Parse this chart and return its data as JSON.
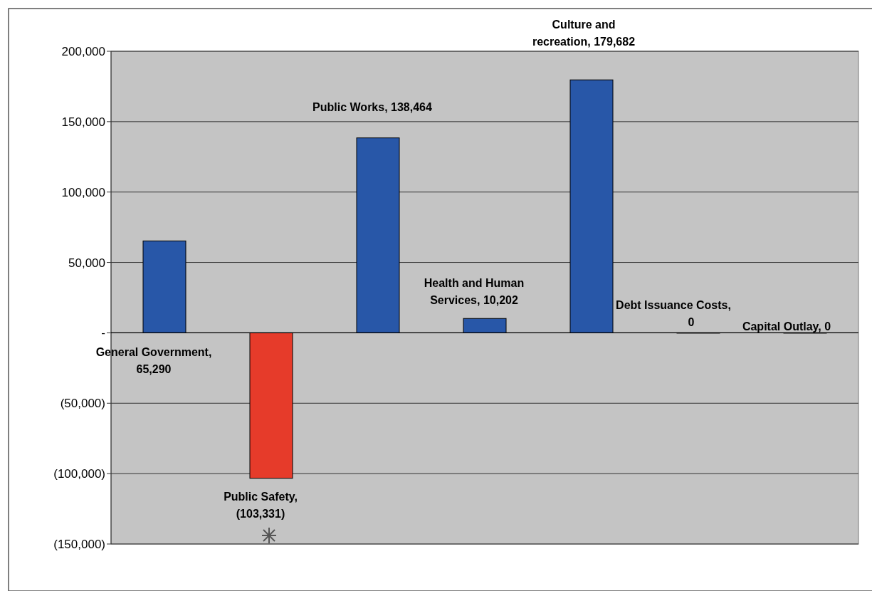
{
  "chart_data": {
    "type": "bar",
    "categories": [
      null,
      null,
      null,
      null,
      null,
      null,
      null
    ],
    "values": [
      65290,
      -103331,
      138464,
      10202,
      179682,
      0,
      0
    ],
    "colors": [
      "#2857a8",
      "#e63b2a",
      "#2857a8",
      "#2857a8",
      "#2857a8",
      "#2857a8",
      "#2857a8"
    ],
    "value_labels": [
      "General Government, 65,290",
      "Public Safety, (103,331)",
      "Public Works, 138,464",
      "Health and Human Services, 10,202",
      "Culture and recreation, 179,682",
      "Debt Issuance Costs, 0",
      "Capital Outlay, 0"
    ],
    "ylim": [
      -150000,
      200000
    ],
    "yticks": [
      {
        "value": -150000,
        "label": "(150,000)"
      },
      {
        "value": -100000,
        "label": "(100,000)"
      },
      {
        "value": -50000,
        "label": "(50,000)"
      },
      {
        "value": 0,
        "label": "-"
      },
      {
        "value": 50000,
        "label": "50,000"
      },
      {
        "value": 100000,
        "label": "100,000"
      },
      {
        "value": 150000,
        "label": "150,000"
      },
      {
        "value": 200000,
        "label": "200,000"
      }
    ],
    "grid": "y"
  }
}
